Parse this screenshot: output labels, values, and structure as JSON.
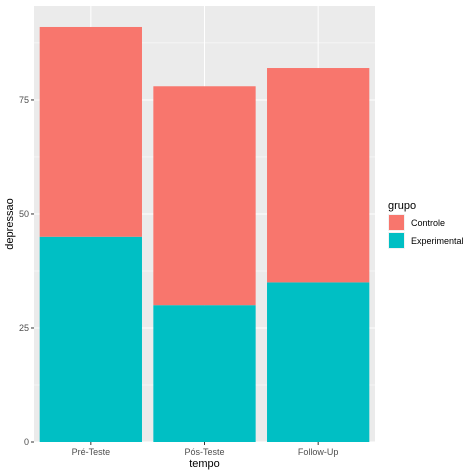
{
  "chart_data": {
    "type": "bar",
    "stacked": true,
    "categories": [
      "Pré-Teste",
      "Pós-Teste",
      "Follow-Up"
    ],
    "series": [
      {
        "name": "Controle",
        "values": [
          46,
          48,
          47
        ],
        "color": "#F8766D"
      },
      {
        "name": "Experimental",
        "values": [
          45,
          30,
          35
        ],
        "color": "#00BFC4"
      }
    ],
    "xlabel": "tempo",
    "ylabel": "depressao",
    "ylim": [
      0,
      95.6
    ],
    "yticks": [
      0,
      25,
      50,
      75
    ],
    "grid": true,
    "legend_title": "grupo",
    "legend_position": "right",
    "panel_background": "#EBEBEB",
    "grid_color": "#FFFFFF"
  }
}
